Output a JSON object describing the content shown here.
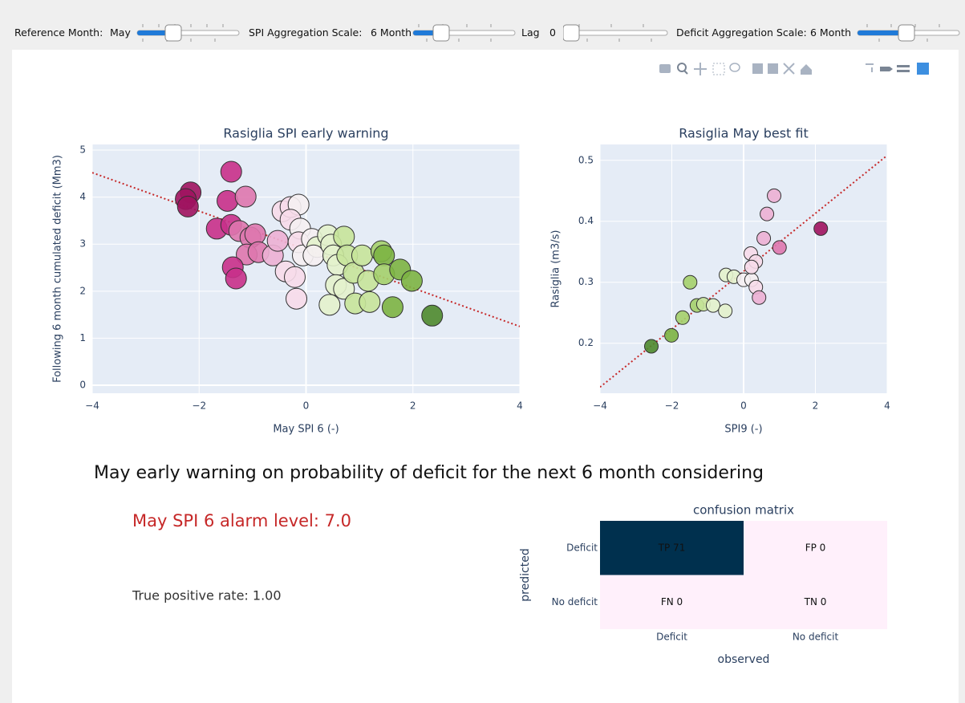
{
  "controls": [
    {
      "label": "Reference Month:",
      "value": "May"
    },
    {
      "label": "SPI Aggregation Scale:",
      "value": "6 Month"
    },
    {
      "label": "Lag",
      "value": "0"
    },
    {
      "label": "Deficit Aggregation Scale:",
      "value": "6 Month"
    }
  ],
  "chart_data": [
    {
      "type": "scatter",
      "title": "Rasiglia SPI early warning",
      "x_label": "May SPI 6 (-)",
      "y_label": "Following 6 month cumulated deficit (Mm3)",
      "xlim": [
        -4,
        4
      ],
      "xticks": [
        {
          "value": -4,
          "label": "−4"
        },
        {
          "value": -2,
          "label": "−2"
        },
        0,
        2,
        4
      ],
      "ylim": [
        -0.17,
        5.12
      ],
      "yticks": [
        0,
        1,
        2,
        3,
        4,
        5
      ],
      "grid": true,
      "x": [
        -2.16,
        -2.25,
        -2.21,
        -1.4,
        -1.47,
        -1.13,
        -1.67,
        -1.4,
        -1.25,
        -1.04,
        -0.95,
        -1.11,
        -0.89,
        -1.37,
        -1.31,
        -0.62,
        -0.53,
        -0.44,
        -0.29,
        -0.14,
        -0.29,
        -0.11,
        -0.14,
        -0.06,
        -0.38,
        -0.21,
        -0.18,
        0.11,
        0.21,
        0.14,
        0.41,
        0.47,
        0.51,
        0.59,
        0.71,
        0.77,
        0.56,
        0.71,
        0.44,
        0.89,
        1.05,
        1.16,
        0.92,
        1.19,
        1.41,
        1.46,
        1.46,
        1.76,
        1.98,
        1.62,
        2.36
      ],
      "y": [
        4.1,
        3.96,
        3.8,
        4.54,
        3.92,
        4.01,
        3.33,
        3.41,
        3.28,
        3.14,
        3.21,
        2.78,
        2.83,
        2.51,
        2.27,
        2.76,
        3.07,
        3.7,
        3.79,
        3.84,
        3.52,
        3.33,
        3.04,
        2.76,
        2.42,
        2.3,
        1.84,
        3.11,
        2.94,
        2.76,
        3.19,
        2.99,
        2.76,
        2.56,
        3.16,
        2.76,
        2.13,
        2.05,
        1.71,
        2.39,
        2.76,
        2.22,
        1.74,
        1.77,
        2.85,
        2.76,
        2.36,
        2.46,
        2.22,
        1.66,
        1.48
      ],
      "colors": [
        "#a0135f",
        "#a0135f",
        "#a0135f",
        "#c8308a",
        "#c8308a",
        "#de77ae",
        "#c8308a",
        "#c8308a",
        "#de77ae",
        "#de77ae",
        "#de77ae",
        "#de77ae",
        "#de77ae",
        "#c8308a",
        "#c8308a",
        "#ecb0d4",
        "#ecb0d4",
        "#f7dcea",
        "#f7dcea",
        "#f5f0f2",
        "#f7dcea",
        "#f5f0f2",
        "#f7dcea",
        "#f5f0f2",
        "#f7dcea",
        "#f7dcea",
        "#f7dcea",
        "#f5f0f2",
        "#e3f2cc",
        "#f5f0f2",
        "#e3f2cc",
        "#e3f2cc",
        "#e3f2cc",
        "#e3f2cc",
        "#c6e49a",
        "#c6e49a",
        "#e3f2cc",
        "#e3f2cc",
        "#e3f2cc",
        "#c6e49a",
        "#c6e49a",
        "#c6e49a",
        "#c6e49a",
        "#c6e49a",
        "#a4d06c",
        "#7cb442",
        "#a4d06c",
        "#7cb442",
        "#7cb442",
        "#7cb442",
        "#4e8a2e"
      ],
      "trendline": {
        "x": [
          -4,
          4
        ],
        "y": [
          4.52,
          1.25
        ],
        "color": "#c62828"
      }
    },
    {
      "type": "scatter",
      "title": "Rasiglia May best fit",
      "x_label": "SPI9 (-)",
      "y_label": "Rasiglia (m3/s)",
      "xlim": [
        -4,
        4
      ],
      "xticks": [
        {
          "value": -4,
          "label": "−4"
        },
        {
          "value": -2,
          "label": "−2"
        },
        0,
        2,
        4
      ],
      "ylim": [
        0.118,
        0.526
      ],
      "yticks": [
        0.2,
        0.3,
        0.4,
        0.5
      ],
      "grid": true,
      "x": [
        -2.57,
        -2.01,
        -1.7,
        -1.49,
        -1.3,
        -1.12,
        -0.85,
        -0.51,
        -0.49,
        -0.27,
        0,
        0.22,
        0.2,
        0.34,
        0.22,
        0.34,
        0.43,
        0.56,
        0.65,
        0.85,
        1.0,
        2.15
      ],
      "y": [
        0.195,
        0.213,
        0.242,
        0.3,
        0.262,
        0.264,
        0.262,
        0.253,
        0.312,
        0.309,
        0.304,
        0.304,
        0.347,
        0.334,
        0.325,
        0.292,
        0.275,
        0.372,
        0.412,
        0.442,
        0.357,
        0.388
      ],
      "colors": [
        "#4e8a2e",
        "#7cb442",
        "#a4d06c",
        "#a4d06c",
        "#a4d06c",
        "#c6e49a",
        "#e3f2cc",
        "#e3f2cc",
        "#e3f2cc",
        "#e3f2cc",
        "#f5f0f2",
        "#f5f0f2",
        "#f7dcea",
        "#f7dcea",
        "#f7dcea",
        "#f7dcea",
        "#ecb0d4",
        "#ecb0d4",
        "#ecb0d4",
        "#ecb0d4",
        "#de77ae",
        "#a0135f"
      ],
      "trendline": {
        "x": [
          -4,
          4
        ],
        "y": [
          0.128,
          0.508
        ],
        "color": "#c62828"
      }
    },
    {
      "type": "heatmap",
      "title": "confusion matrix",
      "x_label": "observed",
      "y_label": "predicted",
      "x_categories": [
        "Deficit",
        "No deficit"
      ],
      "y_categories": [
        "Deficit",
        "No deficit"
      ],
      "values": [
        [
          71,
          0
        ],
        [
          0,
          0
        ]
      ],
      "value_labels": [
        [
          "TP 71",
          "FP 0"
        ],
        [
          "FN 0",
          "TN 0"
        ]
      ],
      "colorscale": [
        "#fff0fb",
        "#00304e"
      ]
    }
  ],
  "texts": {
    "heading": "May early warning on probability of deficit for the next 6 month considering",
    "alarm": "May SPI 6 alarm level: 7.0",
    "true_positive_rate": "True positive rate: 1.00"
  }
}
